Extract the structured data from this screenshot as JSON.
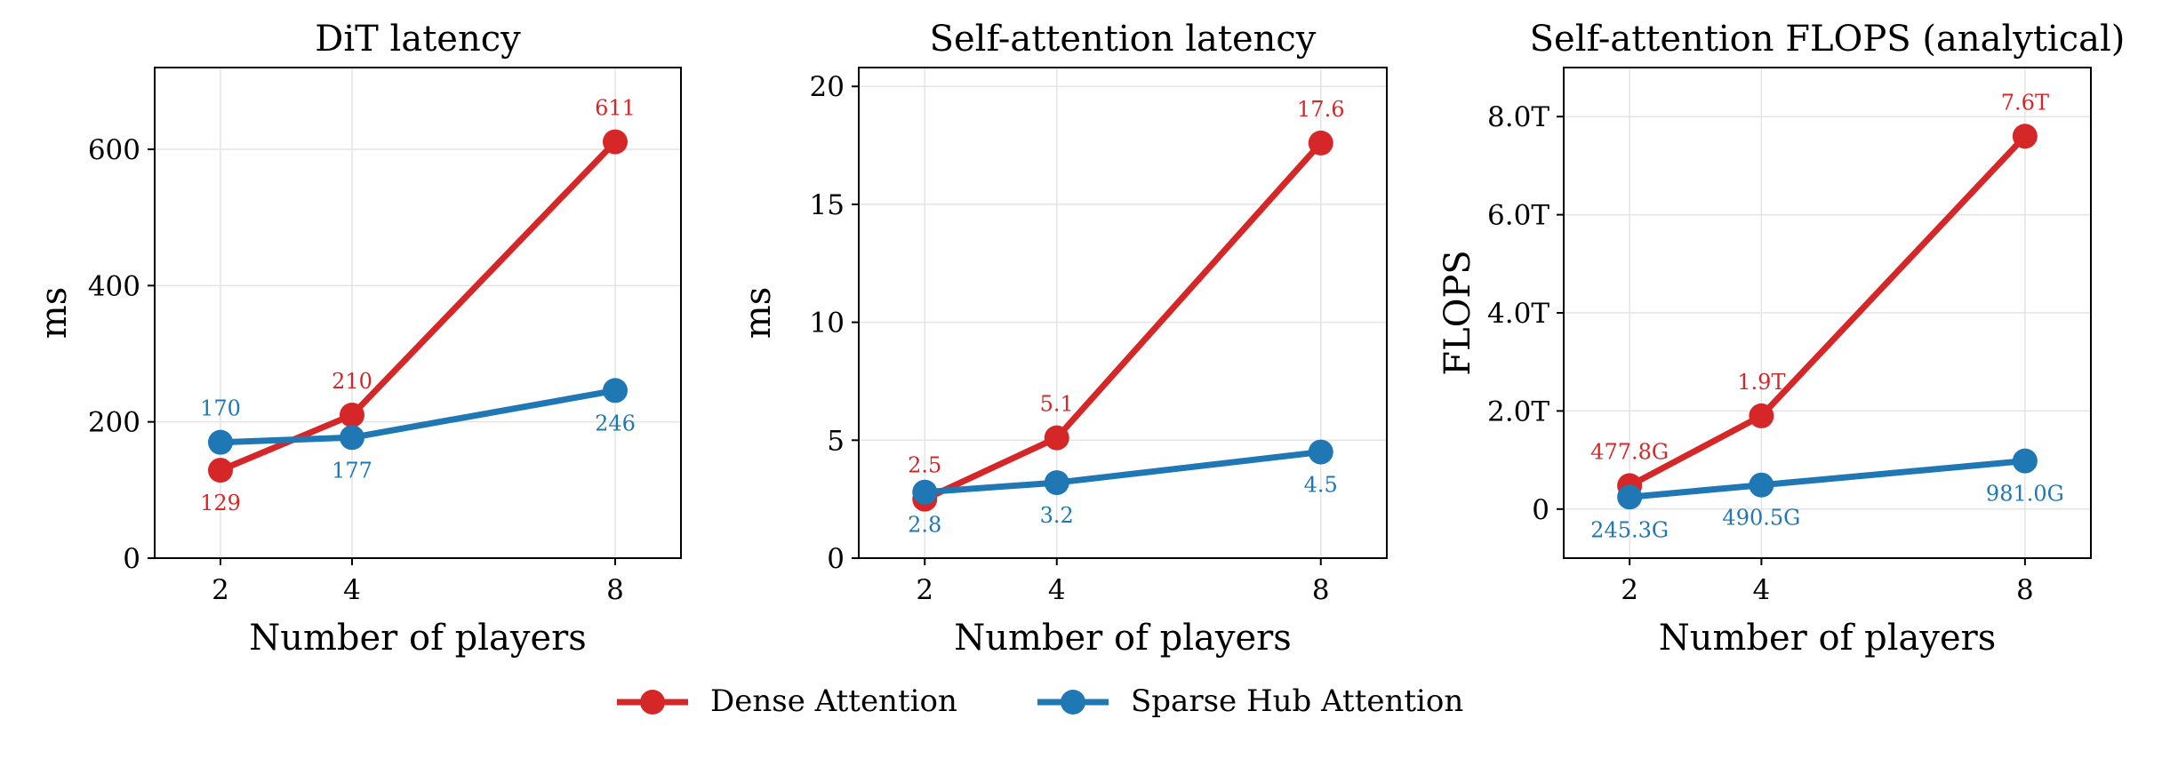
{
  "colors": {
    "dense": "#d62728",
    "sparse": "#1f77b4",
    "grid": "#e4e4e4",
    "axis": "#000000"
  },
  "legend": {
    "placement": "bottom-center",
    "items": [
      "Dense Attention",
      "Sparse Hub Attention"
    ]
  },
  "chart_data": [
    {
      "type": "line",
      "title": "DiT latency",
      "xlabel": "Number of players",
      "ylabel": "ms",
      "x": [
        2,
        4,
        8
      ],
      "xlim": [
        1,
        9
      ],
      "ylim": [
        0,
        720
      ],
      "xticks": [
        2,
        4,
        8
      ],
      "xtick_labels": [
        "2",
        "4",
        "8"
      ],
      "yticks": [
        0,
        200,
        400,
        600
      ],
      "ytick_labels": [
        "0",
        "200",
        "400",
        "600"
      ],
      "grid": true,
      "series": [
        {
          "name": "Dense Attention",
          "values": [
            129,
            210,
            611
          ],
          "labels": [
            "129",
            "210",
            "611"
          ],
          "label_pos": [
            "below",
            "above",
            "above"
          ]
        },
        {
          "name": "Sparse Hub Attention",
          "values": [
            170,
            177,
            246
          ],
          "labels": [
            "170",
            "177",
            "246"
          ],
          "label_pos": [
            "above",
            "below",
            "below"
          ]
        }
      ]
    },
    {
      "type": "line",
      "title": "Self-attention latency",
      "xlabel": "Number of players",
      "ylabel": "ms",
      "x": [
        2,
        4,
        8
      ],
      "xlim": [
        1,
        9
      ],
      "ylim": [
        0,
        20.8
      ],
      "xticks": [
        2,
        4,
        8
      ],
      "xtick_labels": [
        "2",
        "4",
        "8"
      ],
      "yticks": [
        0,
        5,
        10,
        15,
        20
      ],
      "ytick_labels": [
        "0",
        "5",
        "10",
        "15",
        "20"
      ],
      "grid": true,
      "series": [
        {
          "name": "Dense Attention",
          "values": [
            2.5,
            5.1,
            17.6
          ],
          "labels": [
            "2.5",
            "5.1",
            "17.6"
          ],
          "label_pos": [
            "above",
            "above",
            "above"
          ]
        },
        {
          "name": "Sparse Hub Attention",
          "values": [
            2.8,
            3.2,
            4.5
          ],
          "labels": [
            "2.8",
            "3.2",
            "4.5"
          ],
          "label_pos": [
            "below",
            "below",
            "below"
          ]
        }
      ]
    },
    {
      "type": "line",
      "title": "Self-attention FLOPS (analytical)",
      "xlabel": "Number of players",
      "ylabel": "FLOPS",
      "x": [
        2,
        4,
        8
      ],
      "xlim": [
        1,
        9
      ],
      "ylim": [
        -1.0,
        9.0
      ],
      "y_unit": "T (1e12)",
      "xticks": [
        2,
        4,
        8
      ],
      "xtick_labels": [
        "2",
        "4",
        "8"
      ],
      "yticks": [
        0,
        2,
        4,
        6,
        8
      ],
      "ytick_labels": [
        "0",
        "2.0T",
        "4.0T",
        "6.0T",
        "8.0T"
      ],
      "grid": true,
      "series": [
        {
          "name": "Dense Attention",
          "values": [
            0.4778,
            1.9,
            7.6
          ],
          "labels": [
            "477.8G",
            "1.9T",
            "7.6T"
          ],
          "label_pos": [
            "above",
            "above",
            "above"
          ]
        },
        {
          "name": "Sparse Hub Attention",
          "values": [
            0.2453,
            0.4905,
            0.981
          ],
          "labels": [
            "245.3G",
            "490.5G",
            "981.0G"
          ],
          "label_pos": [
            "below",
            "below",
            "below"
          ]
        }
      ]
    }
  ]
}
